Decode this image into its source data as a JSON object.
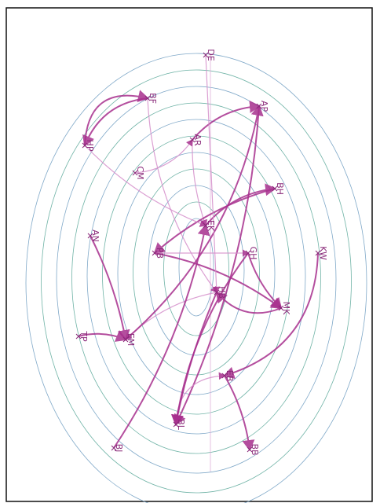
{
  "nodes": [
    {
      "label": "DE"
    },
    {
      "label": "AP"
    },
    {
      "label": "BF"
    },
    {
      "label": "HP"
    },
    {
      "label": "AR"
    },
    {
      "label": "BH"
    },
    {
      "label": "CM"
    },
    {
      "label": "AN"
    },
    {
      "label": "EK"
    },
    {
      "label": "PB"
    },
    {
      "label": "GH"
    },
    {
      "label": "KW"
    },
    {
      "label": "HB"
    },
    {
      "label": "MK"
    },
    {
      "label": "TP"
    },
    {
      "label": "EM"
    },
    {
      "label": "EB"
    },
    {
      "label": "BL"
    },
    {
      "label": "BJ"
    },
    {
      "label": "BB"
    }
  ]
}
